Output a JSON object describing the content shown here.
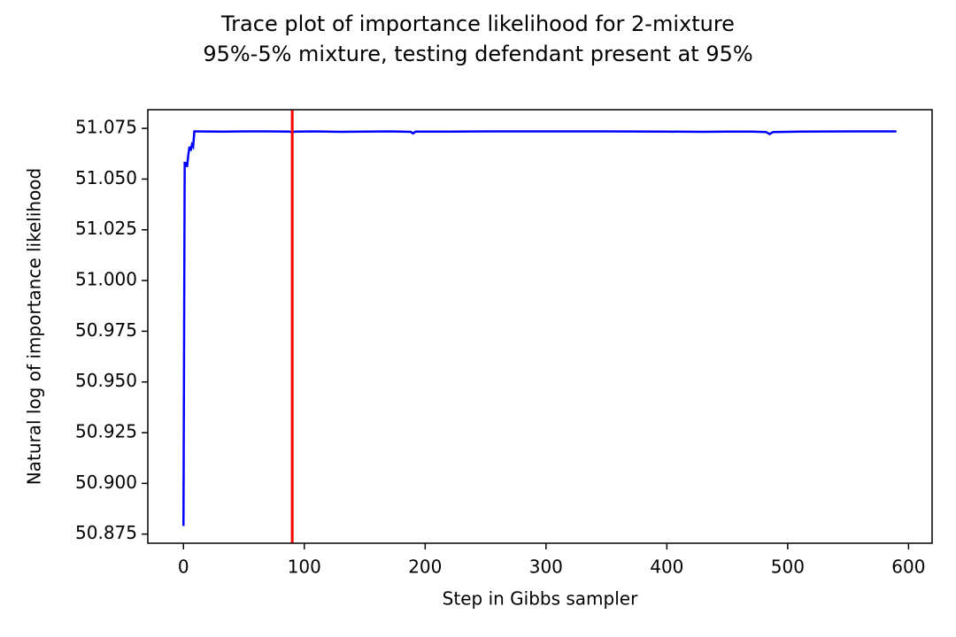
{
  "chart_data": {
    "type": "line",
    "title": [
      "Trace plot of importance likelihood for 2-mixture",
      "95%-5% mixture, testing defendant present at 95%"
    ],
    "x_label": "Step in Gibbs sampler",
    "y_label": "Natural log of importance likelihood",
    "x": [
      0,
      1,
      2,
      3,
      4,
      5,
      6,
      7,
      8,
      9,
      10,
      30,
      50,
      70,
      88,
      90,
      92,
      110,
      130,
      150,
      170,
      188,
      190,
      192,
      210,
      250,
      300,
      350,
      400,
      430,
      450,
      470,
      482,
      485,
      488,
      510,
      550,
      590
    ],
    "series": [
      {
        "color": "#0000ff",
        "values": [
          50.879,
          51.058,
          51.058,
          51.056,
          51.062,
          51.066,
          51.064,
          51.067,
          51.066,
          51.0735,
          51.0735,
          51.0734,
          51.0735,
          51.0735,
          51.0734,
          51.0729,
          51.0734,
          51.0735,
          51.0733,
          51.0734,
          51.0735,
          51.0733,
          51.0725,
          51.0734,
          51.0734,
          51.0735,
          51.0735,
          51.0735,
          51.0734,
          51.0733,
          51.0734,
          51.0734,
          51.0732,
          51.0722,
          51.0732,
          51.0734,
          51.0735,
          51.0735
        ]
      }
    ],
    "vlines": [
      {
        "x": 90,
        "color": "#ff0000"
      }
    ],
    "xlim": [
      -29.5,
      619.5
    ],
    "xticks": [
      0,
      100,
      200,
      300,
      400,
      500,
      600
    ],
    "ylim": [
      50.8705,
      51.0842
    ],
    "yticks": [
      50.875,
      {
        "value": 50.9,
        "label": "50.900"
      },
      50.925,
      {
        "value": 50.95,
        "label": "50.950"
      },
      50.975,
      {
        "value": 51,
        "label": "51.000"
      },
      51.025,
      {
        "value": 51.05,
        "label": "51.050"
      },
      51.075
    ]
  }
}
